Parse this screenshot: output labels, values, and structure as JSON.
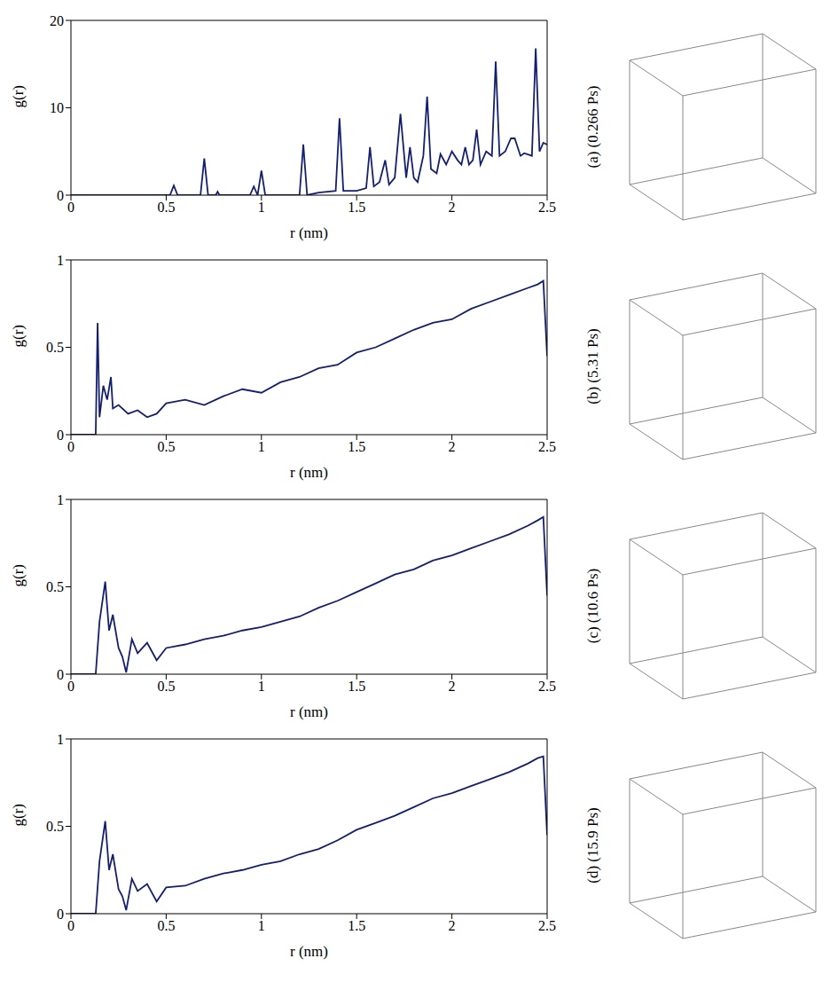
{
  "chart_data": [
    {
      "type": "line",
      "title": "(a) (0.266 Ps)",
      "x_label": "r (nm)",
      "y_label": "g(r)",
      "color": "#14206e",
      "grid": false,
      "xlim": [
        0,
        2.5
      ],
      "ylim": [
        0,
        20
      ],
      "xticks": [
        0,
        0.5,
        1,
        1.5,
        2,
        2.5
      ],
      "yticks": [
        0,
        10,
        20
      ],
      "x": [
        0,
        0.52,
        0.54,
        0.56,
        0.68,
        0.7,
        0.72,
        0.76,
        0.77,
        0.78,
        0.94,
        0.96,
        0.98,
        1.0,
        1.02,
        1.2,
        1.22,
        1.24,
        1.3,
        1.39,
        1.41,
        1.43,
        1.5,
        1.55,
        1.57,
        1.59,
        1.62,
        1.65,
        1.67,
        1.7,
        1.73,
        1.76,
        1.78,
        1.8,
        1.82,
        1.85,
        1.87,
        1.89,
        1.92,
        1.94,
        1.97,
        2.0,
        2.03,
        2.05,
        2.07,
        2.09,
        2.11,
        2.13,
        2.15,
        2.18,
        2.21,
        2.23,
        2.25,
        2.28,
        2.31,
        2.33,
        2.36,
        2.38,
        2.42,
        2.44,
        2.46,
        2.48,
        2.5
      ],
      "values": [
        0,
        0,
        1.1,
        0,
        0,
        4.2,
        0,
        0,
        0.4,
        0,
        0,
        1,
        0,
        2.8,
        0,
        0,
        5.8,
        0,
        0.3,
        0.5,
        8.8,
        0.5,
        0.5,
        0.8,
        5.5,
        1,
        1.5,
        4,
        1.2,
        2,
        9.3,
        2,
        5.5,
        2,
        1.5,
        4.5,
        11.3,
        3,
        2.5,
        4.7,
        3.5,
        5,
        4,
        3.5,
        5.5,
        3.5,
        4,
        7.5,
        3.5,
        5,
        4.5,
        15.3,
        4.5,
        5,
        6.5,
        6.5,
        4.5,
        4.8,
        4.5,
        16.8,
        5,
        6,
        5.8
      ]
    },
    {
      "type": "line",
      "title": "(b) (5.31 Ps)",
      "x_label": "r (nm)",
      "y_label": "g(r)",
      "color": "#14206e",
      "grid": false,
      "xlim": [
        0,
        2.5
      ],
      "ylim": [
        0,
        1
      ],
      "xticks": [
        0,
        0.5,
        1,
        1.5,
        2,
        2.5
      ],
      "yticks": [
        0,
        0.5,
        1
      ],
      "x": [
        0,
        0.13,
        0.14,
        0.15,
        0.17,
        0.19,
        0.21,
        0.22,
        0.25,
        0.3,
        0.35,
        0.4,
        0.45,
        0.5,
        0.6,
        0.7,
        0.8,
        0.9,
        1.0,
        1.1,
        1.2,
        1.3,
        1.4,
        1.5,
        1.6,
        1.7,
        1.8,
        1.9,
        2.0,
        2.1,
        2.2,
        2.3,
        2.4,
        2.45,
        2.48,
        2.5
      ],
      "values": [
        0,
        0,
        0.64,
        0.1,
        0.28,
        0.2,
        0.33,
        0.15,
        0.17,
        0.12,
        0.14,
        0.1,
        0.12,
        0.18,
        0.2,
        0.17,
        0.22,
        0.26,
        0.24,
        0.3,
        0.33,
        0.38,
        0.4,
        0.47,
        0.5,
        0.55,
        0.6,
        0.64,
        0.66,
        0.72,
        0.76,
        0.8,
        0.84,
        0.86,
        0.88,
        0.45
      ]
    },
    {
      "type": "line",
      "title": "(c) (10.6 Ps)",
      "x_label": "r (nm)",
      "y_label": "g(r)",
      "color": "#14206e",
      "grid": false,
      "xlim": [
        0,
        2.5
      ],
      "ylim": [
        0,
        1
      ],
      "xticks": [
        0,
        0.5,
        1,
        1.5,
        2,
        2.5
      ],
      "yticks": [
        0,
        0.5,
        1
      ],
      "x": [
        0,
        0.13,
        0.15,
        0.18,
        0.2,
        0.22,
        0.25,
        0.27,
        0.29,
        0.32,
        0.35,
        0.4,
        0.45,
        0.5,
        0.6,
        0.7,
        0.8,
        0.9,
        1.0,
        1.1,
        1.2,
        1.3,
        1.4,
        1.5,
        1.6,
        1.7,
        1.8,
        1.9,
        2.0,
        2.1,
        2.2,
        2.3,
        2.4,
        2.45,
        2.48,
        2.5
      ],
      "values": [
        0,
        0,
        0.3,
        0.53,
        0.25,
        0.34,
        0.15,
        0.1,
        0.01,
        0.2,
        0.12,
        0.18,
        0.08,
        0.15,
        0.17,
        0.2,
        0.22,
        0.25,
        0.27,
        0.3,
        0.33,
        0.38,
        0.42,
        0.47,
        0.52,
        0.57,
        0.6,
        0.65,
        0.68,
        0.72,
        0.76,
        0.8,
        0.85,
        0.88,
        0.9,
        0.45
      ]
    },
    {
      "type": "line",
      "title": "(d) (15.9 Ps)",
      "x_label": "r (nm)",
      "y_label": "g(r)",
      "color": "#14206e",
      "grid": false,
      "xlim": [
        0,
        2.5
      ],
      "ylim": [
        0,
        1
      ],
      "xticks": [
        0,
        0.5,
        1,
        1.5,
        2,
        2.5
      ],
      "yticks": [
        0,
        0.5,
        1
      ],
      "x": [
        0,
        0.13,
        0.15,
        0.18,
        0.2,
        0.22,
        0.25,
        0.27,
        0.29,
        0.32,
        0.35,
        0.4,
        0.45,
        0.5,
        0.6,
        0.7,
        0.8,
        0.9,
        1.0,
        1.1,
        1.2,
        1.3,
        1.4,
        1.5,
        1.6,
        1.7,
        1.8,
        1.9,
        2.0,
        2.1,
        2.2,
        2.3,
        2.4,
        2.45,
        2.48,
        2.5
      ],
      "values": [
        0,
        0,
        0.3,
        0.53,
        0.25,
        0.34,
        0.14,
        0.1,
        0.02,
        0.2,
        0.13,
        0.17,
        0.07,
        0.15,
        0.16,
        0.2,
        0.23,
        0.25,
        0.28,
        0.3,
        0.34,
        0.37,
        0.42,
        0.48,
        0.52,
        0.56,
        0.61,
        0.66,
        0.69,
        0.73,
        0.77,
        0.81,
        0.86,
        0.89,
        0.9,
        0.45
      ]
    }
  ]
}
